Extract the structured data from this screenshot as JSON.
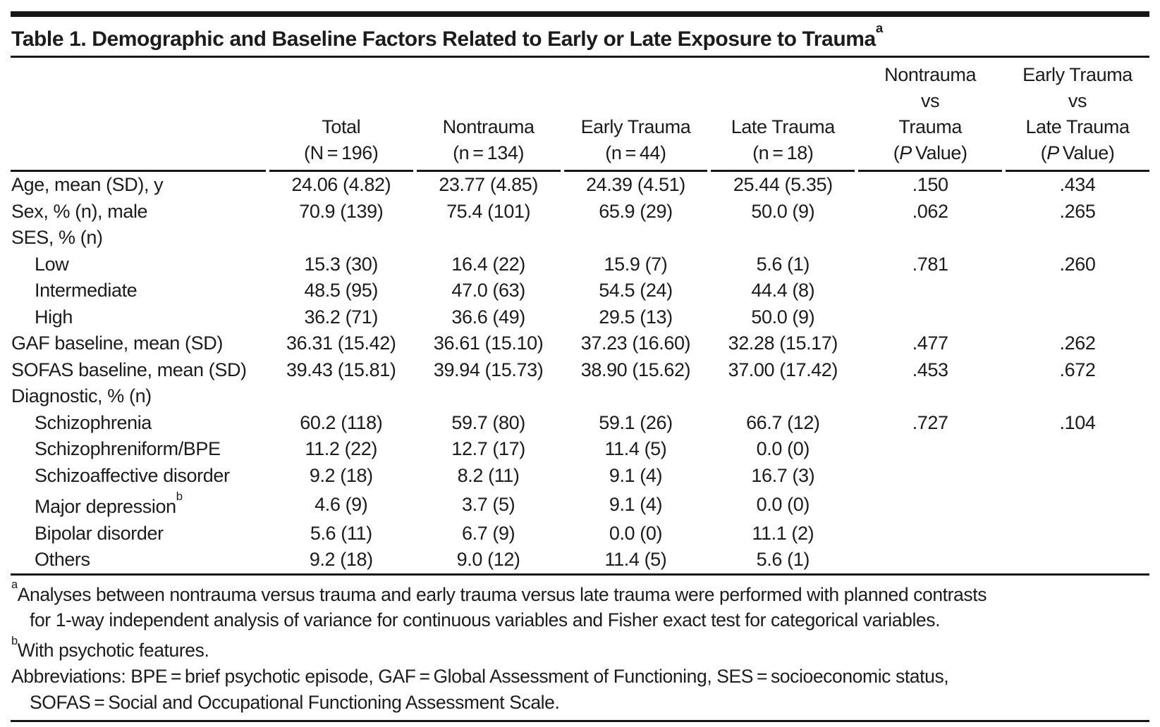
{
  "table": {
    "title_segments": [
      {
        "t": "Table 1. Demographic and Baseline Factors Related to Early or Late Exposure to Trauma"
      },
      {
        "t": "a",
        "sup": true
      }
    ],
    "columns": [
      {
        "key": "label",
        "lines": []
      },
      {
        "key": "total",
        "lines": [
          [
            {
              "t": "Total"
            }
          ],
          [
            {
              "t": "(N = 196)"
            }
          ]
        ]
      },
      {
        "key": "nontrauma",
        "lines": [
          [
            {
              "t": "Nontrauma"
            }
          ],
          [
            {
              "t": "(n = 134)"
            }
          ]
        ]
      },
      {
        "key": "early-trauma",
        "lines": [
          [
            {
              "t": "Early Trauma"
            }
          ],
          [
            {
              "t": "(n = 44)"
            }
          ]
        ]
      },
      {
        "key": "late-trauma",
        "lines": [
          [
            {
              "t": "Late Trauma"
            }
          ],
          [
            {
              "t": "(n = 18)"
            }
          ]
        ]
      },
      {
        "key": "nontrauma-vs-trauma",
        "lines": [
          [
            {
              "t": "Nontrauma"
            }
          ],
          [
            {
              "t": "vs"
            }
          ],
          [
            {
              "t": "Trauma"
            }
          ],
          [
            {
              "t": "("
            },
            {
              "t": "P",
              "i": true
            },
            {
              "t": " Value)"
            }
          ]
        ]
      },
      {
        "key": "early-vs-late-trauma",
        "lines": [
          [
            {
              "t": "Early Trauma"
            }
          ],
          [
            {
              "t": "vs"
            }
          ],
          [
            {
              "t": "Late Trauma"
            }
          ],
          [
            {
              "t": "("
            },
            {
              "t": "P",
              "i": true
            },
            {
              "t": " Value)"
            }
          ]
        ]
      }
    ],
    "rows": [
      {
        "label": [
          {
            "t": "Age, mean (SD), y"
          }
        ],
        "indent": false,
        "values": [
          "24.06 (4.82)",
          "23.77 (4.85)",
          "24.39 (4.51)",
          "25.44 (5.35)",
          ".150",
          ".434"
        ]
      },
      {
        "label": [
          {
            "t": "Sex, % (n), male"
          }
        ],
        "indent": false,
        "values": [
          "70.9 (139)",
          "75.4 (101)",
          "65.9 (29)",
          "50.0 (9)",
          ".062",
          ".265"
        ]
      },
      {
        "label": [
          {
            "t": "SES, % (n)"
          }
        ],
        "indent": false,
        "values": [
          "",
          "",
          "",
          "",
          "",
          ""
        ]
      },
      {
        "label": [
          {
            "t": "Low"
          }
        ],
        "indent": true,
        "values": [
          "15.3 (30)",
          "16.4 (22)",
          "15.9 (7)",
          "5.6 (1)",
          ".781",
          ".260"
        ]
      },
      {
        "label": [
          {
            "t": "Intermediate"
          }
        ],
        "indent": true,
        "values": [
          "48.5 (95)",
          "47.0 (63)",
          "54.5 (24)",
          "44.4 (8)",
          "",
          ""
        ]
      },
      {
        "label": [
          {
            "t": "High"
          }
        ],
        "indent": true,
        "values": [
          "36.2 (71)",
          "36.6 (49)",
          "29.5 (13)",
          "50.0 (9)",
          "",
          ""
        ]
      },
      {
        "label": [
          {
            "t": "GAF baseline, mean (SD)"
          }
        ],
        "indent": false,
        "values": [
          "36.31 (15.42)",
          "36.61 (15.10)",
          "37.23 (16.60)",
          "32.28 (15.17)",
          ".477",
          ".262"
        ]
      },
      {
        "label": [
          {
            "t": "SOFAS baseline, mean (SD)"
          }
        ],
        "indent": false,
        "values": [
          "39.43 (15.81)",
          "39.94 (15.73)",
          "38.90 (15.62)",
          "37.00 (17.42)",
          ".453",
          ".672"
        ]
      },
      {
        "label": [
          {
            "t": "Diagnostic, % (n)"
          }
        ],
        "indent": false,
        "values": [
          "",
          "",
          "",
          "",
          "",
          ""
        ]
      },
      {
        "label": [
          {
            "t": "Schizophrenia"
          }
        ],
        "indent": true,
        "values": [
          "60.2 (118)",
          "59.7 (80)",
          "59.1 (26)",
          "66.7 (12)",
          ".727",
          ".104"
        ]
      },
      {
        "label": [
          {
            "t": "Schizophreniform/BPE"
          }
        ],
        "indent": true,
        "values": [
          "11.2 (22)",
          "12.7 (17)",
          "11.4 (5)",
          "0.0 (0)",
          "",
          ""
        ]
      },
      {
        "label": [
          {
            "t": "Schizoaffective disorder"
          }
        ],
        "indent": true,
        "values": [
          "9.2 (18)",
          "8.2 (11)",
          "9.1 (4)",
          "16.7 (3)",
          "",
          ""
        ]
      },
      {
        "label": [
          {
            "t": "Major depression"
          },
          {
            "t": "b",
            "sup": true
          }
        ],
        "indent": true,
        "values": [
          "4.6 (9)",
          "3.7 (5)",
          "9.1 (4)",
          "0.0 (0)",
          "",
          ""
        ]
      },
      {
        "label": [
          {
            "t": "Bipolar disorder"
          }
        ],
        "indent": true,
        "values": [
          "5.6 (11)",
          "6.7 (9)",
          "0.0 (0)",
          "11.1 (2)",
          "",
          ""
        ]
      },
      {
        "label": [
          {
            "t": "Others"
          }
        ],
        "indent": true,
        "values": [
          "9.2 (18)",
          "9.0 (12)",
          "11.4 (5)",
          "5.6 (1)",
          "",
          ""
        ]
      }
    ],
    "footnotes": [
      {
        "key": "footnote-a",
        "lines": [
          [
            {
              "t": "a",
              "sup": true
            },
            {
              "t": "Analyses between nontrauma versus trauma and early trauma versus late trauma were performed with planned contrasts"
            }
          ],
          [
            {
              "t": "for 1-way independent analysis of variance for continuous variables and Fisher exact test for categorical variables."
            }
          ]
        ]
      },
      {
        "key": "footnote-b",
        "lines": [
          [
            {
              "t": "b",
              "sup": true
            },
            {
              "t": "With psychotic features."
            }
          ]
        ]
      },
      {
        "key": "footnote-abbreviations",
        "lines": [
          [
            {
              "t": "Abbreviations: BPE = brief psychotic episode, GAF = Global Assessment of Functioning, SES = socioeconomic status,"
            }
          ],
          [
            {
              "t": "SOFAS = Social and Occupational Functioning Assessment Scale."
            }
          ]
        ]
      }
    ],
    "colors": {
      "rule": "#161616",
      "text": "#1c1c1c",
      "background": "#ffffff"
    }
  }
}
